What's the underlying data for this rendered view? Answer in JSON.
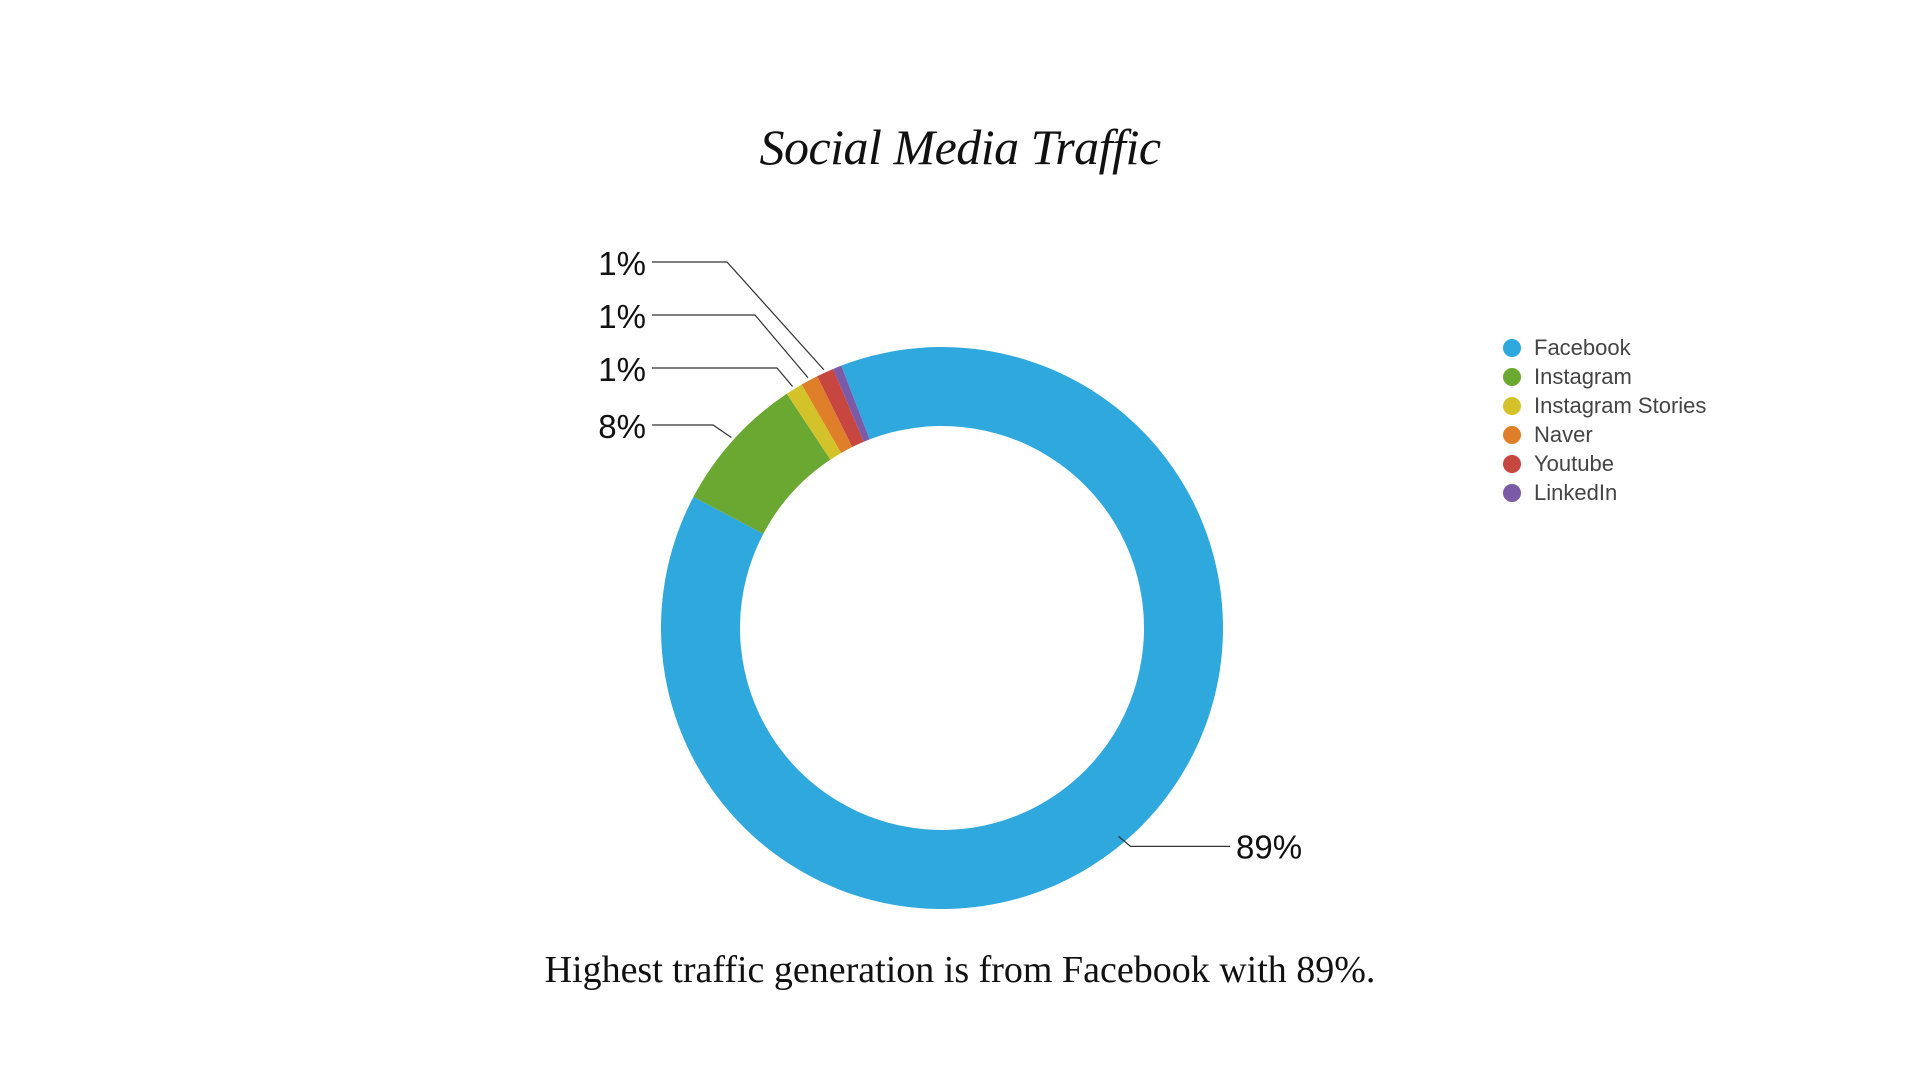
{
  "chart_data": {
    "type": "pie",
    "variant": "donut",
    "title": "Social Media Traffic",
    "categories": [
      "Facebook",
      "Instagram",
      "Instagram Stories",
      "Naver",
      "Youtube",
      "LinkedIn"
    ],
    "values": [
      89,
      8,
      1,
      1,
      1,
      0.5
    ],
    "labels": [
      "89%",
      "8%",
      "1%",
      "1%",
      "1%",
      ""
    ],
    "colors": [
      "#2fa8dd",
      "#6aa832",
      "#d4c22a",
      "#df7f2a",
      "#c74640",
      "#7b5ba8"
    ],
    "legend_position": "right",
    "caption": "Highest traffic generation is from Facebook with 89%."
  }
}
